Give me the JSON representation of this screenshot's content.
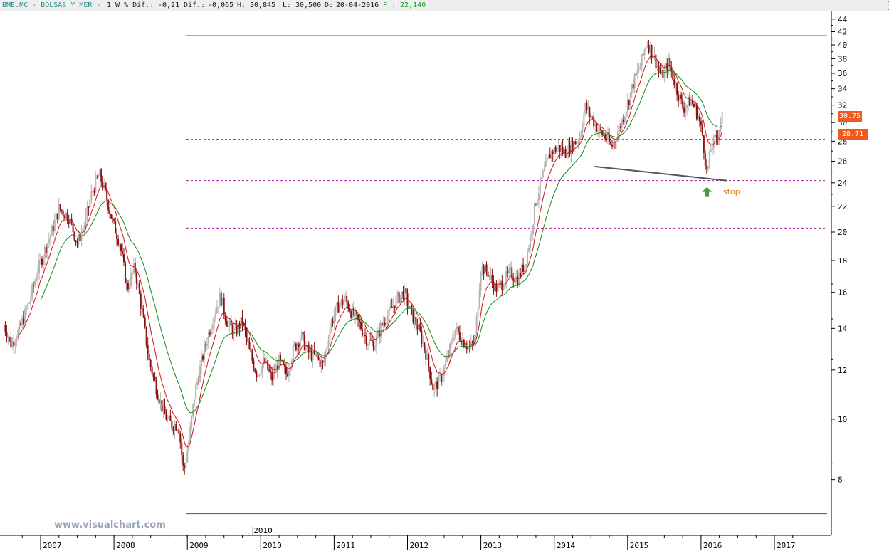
{
  "header": {
    "symbol": "BME.MC - BOLSAS Y MER -",
    "interval": "1 W % Dif.:",
    "pct_dif": "-0,21",
    "dif_label": "Dif.:",
    "dif": "-0,065",
    "high_label": "H:",
    "high": "30,845",
    "low_label": "L:",
    "low": "30,500",
    "date_label": "D:",
    "date": "20-04-2016",
    "p_label": "P :",
    "price": "22,140"
  },
  "watermark": "www.visualchart.com",
  "stop_label": "stop",
  "price_tags": [
    "30.75",
    "28.71"
  ],
  "colors": {
    "up_candle": "#b4b4b4",
    "down_candle": "#8a1010",
    "ma_fast": "#178a17",
    "ma_slow": "#d01414",
    "level_line": "#b01aa0",
    "trend_line": "#555555",
    "arrow": "#3ba53b",
    "tag": "#ee5a1f"
  },
  "chart_data": {
    "type": "candlestick",
    "y_scale": "log",
    "ylim": [
      7,
      45
    ],
    "y_ticks": [
      44,
      42,
      40,
      38,
      36,
      34,
      32,
      30,
      28,
      26,
      24,
      22,
      20,
      18,
      16,
      14,
      12,
      10,
      8
    ],
    "x_labels": [
      "2007",
      "2008",
      "2009",
      "2010",
      "2011",
      "2012",
      "2013",
      "2014",
      "2015",
      "2016",
      "2017"
    ],
    "x_extra_label": "2010",
    "horizontal_levels": [
      {
        "value": 41.4,
        "style": "solid"
      },
      {
        "value": 28.2,
        "style": "dashed"
      },
      {
        "value": 24.2,
        "style": "dashed"
      },
      {
        "value": 20.3,
        "style": "dashed"
      },
      {
        "value": 7.05,
        "style": "solid"
      }
    ],
    "trend_line": {
      "from": {
        "date": "2014.55",
        "value": 25.5
      },
      "to": {
        "date": "2016.35",
        "value": 24.2
      }
    },
    "stop_marker": {
      "date": "2016.08",
      "value": 23.2
    },
    "price_anchors": [
      [
        2006.5,
        14.2
      ],
      [
        2006.6,
        13.2
      ],
      [
        2006.72,
        14.0
      ],
      [
        2006.85,
        15.5
      ],
      [
        2006.95,
        17.2
      ],
      [
        2007.05,
        18.6
      ],
      [
        2007.15,
        20.0
      ],
      [
        2007.25,
        21.8
      ],
      [
        2007.38,
        21.2
      ],
      [
        2007.5,
        19.2
      ],
      [
        2007.6,
        20.6
      ],
      [
        2007.7,
        23.2
      ],
      [
        2007.8,
        24.8
      ],
      [
        2007.88,
        23.2
      ],
      [
        2007.98,
        20.8
      ],
      [
        2008.08,
        19.2
      ],
      [
        2008.18,
        16.2
      ],
      [
        2008.28,
        17.6
      ],
      [
        2008.38,
        15.0
      ],
      [
        2008.48,
        12.4
      ],
      [
        2008.58,
        11.2
      ],
      [
        2008.68,
        10.2
      ],
      [
        2008.78,
        9.8
      ],
      [
        2008.88,
        9.8
      ],
      [
        2008.95,
        8.2
      ],
      [
        2009.02,
        9.2
      ],
      [
        2009.1,
        11.0
      ],
      [
        2009.22,
        12.8
      ],
      [
        2009.35,
        14.6
      ],
      [
        2009.45,
        15.8
      ],
      [
        2009.55,
        14.2
      ],
      [
        2009.65,
        13.8
      ],
      [
        2009.75,
        14.4
      ],
      [
        2009.85,
        12.8
      ],
      [
        2009.95,
        11.8
      ],
      [
        2010.05,
        12.4
      ],
      [
        2010.15,
        11.6
      ],
      [
        2010.25,
        12.4
      ],
      [
        2010.35,
        11.8
      ],
      [
        2010.45,
        13.0
      ],
      [
        2010.55,
        13.6
      ],
      [
        2010.65,
        12.8
      ],
      [
        2010.75,
        12.6
      ],
      [
        2010.85,
        12.2
      ],
      [
        2010.95,
        14.2
      ],
      [
        2011.05,
        15.2
      ],
      [
        2011.15,
        15.6
      ],
      [
        2011.25,
        14.8
      ],
      [
        2011.35,
        14.2
      ],
      [
        2011.45,
        13.4
      ],
      [
        2011.55,
        13.2
      ],
      [
        2011.65,
        14.2
      ],
      [
        2011.75,
        14.8
      ],
      [
        2011.85,
        15.6
      ],
      [
        2011.95,
        16.0
      ],
      [
        2012.05,
        14.8
      ],
      [
        2012.15,
        14.0
      ],
      [
        2012.25,
        12.8
      ],
      [
        2012.35,
        11.2
      ],
      [
        2012.45,
        11.6
      ],
      [
        2012.55,
        12.6
      ],
      [
        2012.65,
        14.0
      ],
      [
        2012.75,
        13.4
      ],
      [
        2012.85,
        13.0
      ],
      [
        2012.92,
        13.4
      ],
      [
        2013.0,
        17.6
      ],
      [
        2013.1,
        17.2
      ],
      [
        2013.2,
        16.2
      ],
      [
        2013.3,
        16.6
      ],
      [
        2013.4,
        17.2
      ],
      [
        2013.5,
        16.8
      ],
      [
        2013.6,
        17.8
      ],
      [
        2013.68,
        19.8
      ],
      [
        2013.75,
        22.5
      ],
      [
        2013.85,
        24.8
      ],
      [
        2013.95,
        26.8
      ],
      [
        2014.05,
        27.4
      ],
      [
        2014.15,
        26.8
      ],
      [
        2014.25,
        27.6
      ],
      [
        2014.35,
        28.6
      ],
      [
        2014.42,
        31.8
      ],
      [
        2014.52,
        30.4
      ],
      [
        2014.6,
        29.2
      ],
      [
        2014.7,
        28.4
      ],
      [
        2014.78,
        27.4
      ],
      [
        2014.88,
        29.2
      ],
      [
        2014.98,
        31.6
      ],
      [
        2015.08,
        34.8
      ],
      [
        2015.18,
        37.2
      ],
      [
        2015.26,
        40.6
      ],
      [
        2015.36,
        38.2
      ],
      [
        2015.46,
        35.6
      ],
      [
        2015.56,
        37.4
      ],
      [
        2015.66,
        34.2
      ],
      [
        2015.76,
        31.6
      ],
      [
        2015.86,
        32.6
      ],
      [
        2015.96,
        30.8
      ],
      [
        2016.02,
        28.6
      ],
      [
        2016.08,
        24.8
      ],
      [
        2016.14,
        27.4
      ],
      [
        2016.22,
        28.6
      ],
      [
        2016.29,
        30.75
      ]
    ]
  }
}
